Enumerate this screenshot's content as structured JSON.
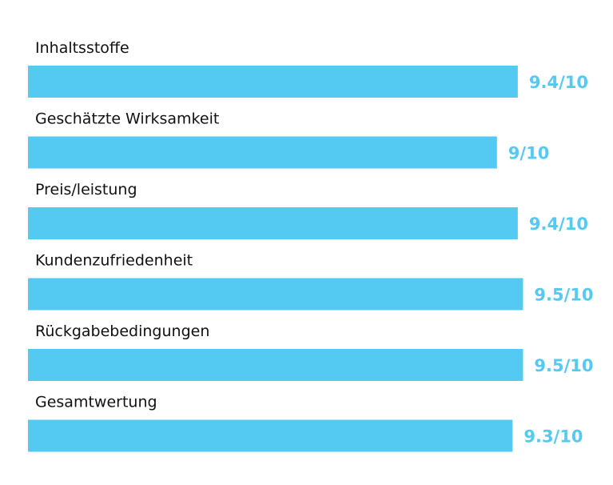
{
  "colors": {
    "bar": "#54CAF2",
    "value_text": "#54CAF2",
    "label_text": "#111111"
  },
  "chart_data": {
    "type": "bar",
    "orientation": "horizontal",
    "categories": [
      "Inhaltsstoffe",
      "Geschätzte Wirksamkeit",
      "Preis/leistung",
      "Kundenzufriedenheit",
      "Rückgabebedingungen",
      "Gesamtwertung"
    ],
    "values": [
      9.4,
      9,
      9.4,
      9.5,
      9.5,
      9.3
    ],
    "value_labels": [
      "9.4/10",
      "9/10",
      "9.4/10",
      "9.5/10",
      "9.5/10",
      "9.3/10"
    ],
    "xlim": [
      0,
      10
    ],
    "grid": false,
    "legend": "none"
  }
}
